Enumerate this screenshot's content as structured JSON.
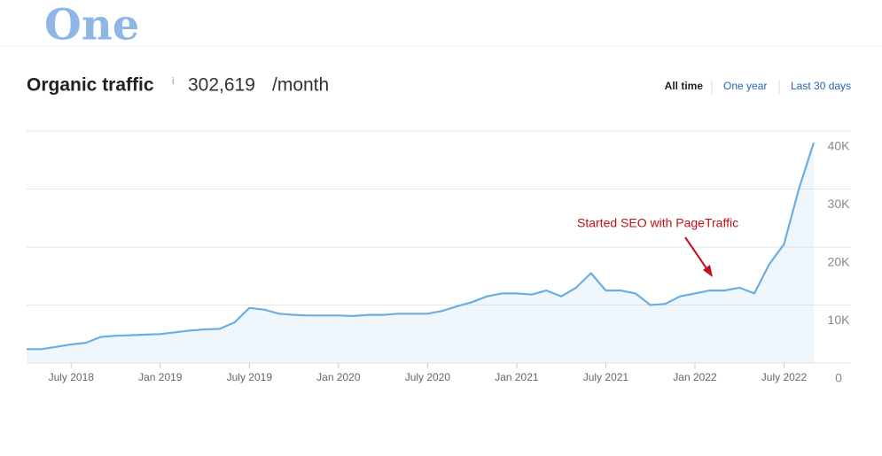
{
  "brand": "One",
  "chart_data": {
    "type": "line",
    "title": "Organic traffic",
    "info": "i",
    "total": "302,619",
    "unit": "/month",
    "ranges": [
      "All time",
      "One year",
      "Last 30 days"
    ],
    "annotation": "Started SEO with PageTraffic",
    "x": [
      "2018-04",
      "2018-05",
      "2018-06",
      "2018-07",
      "2018-08",
      "2018-09",
      "2018-10",
      "2018-11",
      "2018-12",
      "2019-01",
      "2019-02",
      "2019-03",
      "2019-04",
      "2019-05",
      "2019-06",
      "2019-07",
      "2019-08",
      "2019-09",
      "2019-10",
      "2019-11",
      "2019-12",
      "2020-01",
      "2020-02",
      "2020-03",
      "2020-04",
      "2020-05",
      "2020-06",
      "2020-07",
      "2020-08",
      "2020-09",
      "2020-10",
      "2020-11",
      "2020-12",
      "2021-01",
      "2021-02",
      "2021-03",
      "2021-04",
      "2021-05",
      "2021-06",
      "2021-07",
      "2021-08",
      "2021-09",
      "2021-10",
      "2021-11",
      "2021-12",
      "2022-01",
      "2022-02",
      "2022-03",
      "2022-04",
      "2022-05",
      "2022-06",
      "2022-07",
      "2022-08",
      "2022-09"
    ],
    "values": [
      2400,
      2400,
      2800,
      3200,
      3500,
      4500,
      4700,
      4800,
      4900,
      5000,
      5300,
      5600,
      5800,
      5900,
      7000,
      9500,
      9200,
      8500,
      8300,
      8200,
      8200,
      8200,
      8100,
      8300,
      8300,
      8500,
      8500,
      8500,
      9000,
      9800,
      10500,
      11500,
      12000,
      12000,
      11800,
      12500,
      11500,
      13000,
      15500,
      12500,
      12500,
      12000,
      10000,
      10200,
      11500,
      12000,
      12500,
      12500,
      13000,
      12000,
      17000,
      20500,
      30000,
      38000
    ],
    "color": "#6aaee3",
    "xlim": [
      "2018-04",
      "2022-09"
    ],
    "xticks": [
      {
        "value": "2018-07",
        "label": "July 2018"
      },
      {
        "value": "2019-01",
        "label": "Jan 2019"
      },
      {
        "value": "2019-07",
        "label": "July 2019"
      },
      {
        "value": "2020-01",
        "label": "Jan 2020"
      },
      {
        "value": "2020-07",
        "label": "July 2020"
      },
      {
        "value": "2021-01",
        "label": "Jan 2021"
      },
      {
        "value": "2021-07",
        "label": "July 2021"
      },
      {
        "value": "2022-01",
        "label": "Jan 2022"
      },
      {
        "value": "2022-07",
        "label": "July 2022"
      }
    ],
    "ylim": [
      0,
      40000
    ],
    "yticks": [
      0,
      {
        "value": 10000,
        "label": "10K"
      },
      {
        "value": 20000,
        "label": "20K"
      },
      {
        "value": 30000,
        "label": "30K"
      },
      {
        "value": 40000,
        "label": "40K"
      }
    ],
    "grid": true
  }
}
